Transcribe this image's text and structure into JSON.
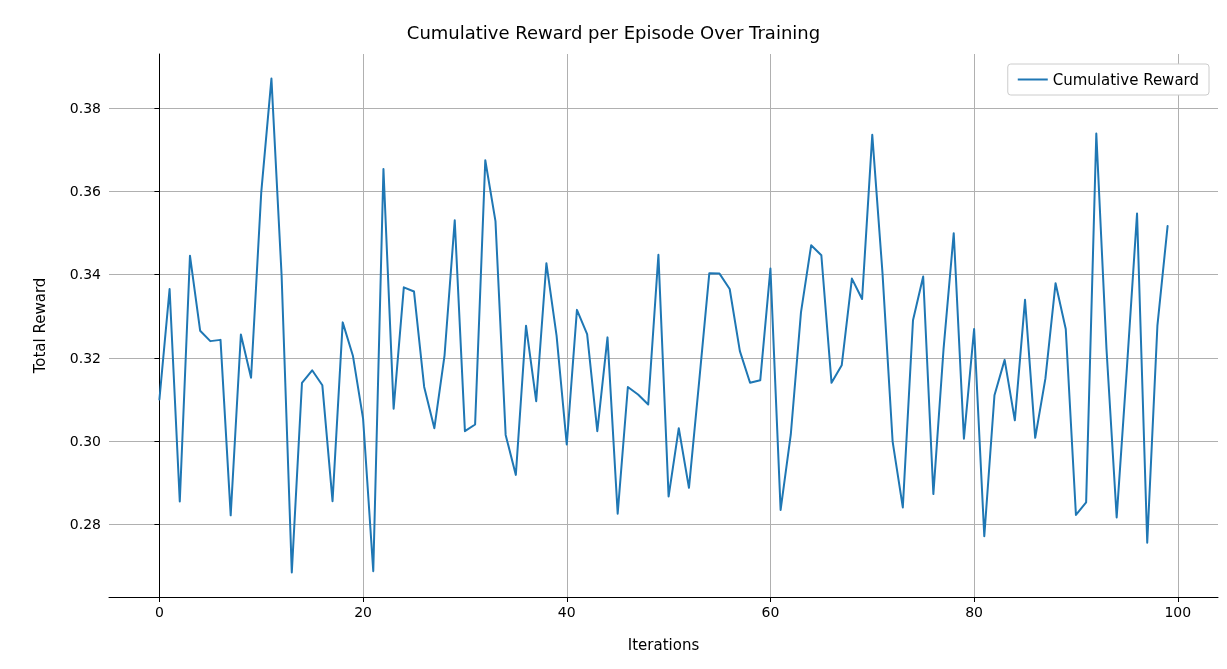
{
  "chart_data": {
    "type": "line",
    "title": "Cumulative Reward per Episode Over Training",
    "xlabel": "Iterations",
    "ylabel": "Total Reward",
    "x": [
      0,
      1,
      2,
      3,
      4,
      5,
      6,
      7,
      8,
      9,
      10,
      11,
      12,
      13,
      14,
      15,
      16,
      17,
      18,
      19,
      20,
      21,
      22,
      23,
      24,
      25,
      26,
      27,
      28,
      29,
      30,
      31,
      32,
      33,
      34,
      35,
      36,
      37,
      38,
      39,
      40,
      41,
      42,
      43,
      44,
      45,
      46,
      47,
      48,
      49,
      50,
      51,
      52,
      53,
      54,
      55,
      56,
      57,
      58,
      59,
      60,
      61,
      62,
      63,
      64,
      65,
      66,
      67,
      68,
      69,
      70,
      71,
      72,
      73,
      74,
      75,
      76,
      77,
      78,
      79,
      80,
      81,
      82,
      83,
      84,
      85,
      86,
      87,
      88,
      89,
      90,
      91,
      92,
      93,
      94,
      95,
      96,
      97,
      98,
      99
    ],
    "series": [
      {
        "name": "Cumulative Reward",
        "color": "#1f77b4",
        "values": [
          0.31,
          0.3365,
          0.2855,
          0.3445,
          0.3265,
          0.324,
          0.3243,
          0.2822,
          0.3256,
          0.3152,
          0.3597,
          0.387,
          0.3397,
          0.2685,
          0.314,
          0.317,
          0.3134,
          0.2856,
          0.3285,
          0.3205,
          0.3054,
          0.2688,
          0.3653,
          0.3078,
          0.3369,
          0.3359,
          0.313,
          0.3031,
          0.3206,
          0.353,
          0.3024,
          0.304,
          0.3674,
          0.3528,
          0.3015,
          0.2919,
          0.3277,
          0.3096,
          0.3427,
          0.3253,
          0.2992,
          0.3315,
          0.3257,
          0.3024,
          0.3249,
          0.2826,
          0.313,
          0.3112,
          0.3088,
          0.3447,
          0.2867,
          0.3031,
          0.2888,
          0.3143,
          0.3403,
          0.3402,
          0.3365,
          0.3216,
          0.314,
          0.3146,
          0.3414,
          0.2835,
          0.3016,
          0.3309,
          0.347,
          0.3446,
          0.314,
          0.3182,
          0.339,
          0.3341,
          0.3735,
          0.3405,
          0.2999,
          0.2841,
          0.329,
          0.3395,
          0.2873,
          0.3221,
          0.3499,
          0.3006,
          0.3269,
          0.2772,
          0.311,
          0.3195,
          0.305,
          0.3339,
          0.3008,
          0.315,
          0.3379,
          0.3269,
          0.2823,
          0.2853,
          0.3738,
          0.3221,
          0.2817,
          0.3174,
          0.3546,
          0.2756,
          0.3277,
          0.3516
        ]
      }
    ],
    "xlim": [
      -4.95,
      103.95
    ],
    "xticks": [
      0,
      20,
      40,
      60,
      80,
      100
    ],
    "ylim": [
      0.2626,
      0.3929
    ],
    "yticks": [
      {
        "value": 0.28,
        "label": "0.28"
      },
      {
        "value": 0.3,
        "label": "0.30"
      },
      {
        "value": 0.32,
        "label": "0.32"
      },
      {
        "value": 0.34,
        "label": "0.34"
      },
      {
        "value": 0.36,
        "label": "0.36"
      },
      {
        "value": 0.38,
        "label": "0.38"
      }
    ],
    "grid": true,
    "legend": "top right",
    "marker": "none",
    "line_style": "solid"
  }
}
